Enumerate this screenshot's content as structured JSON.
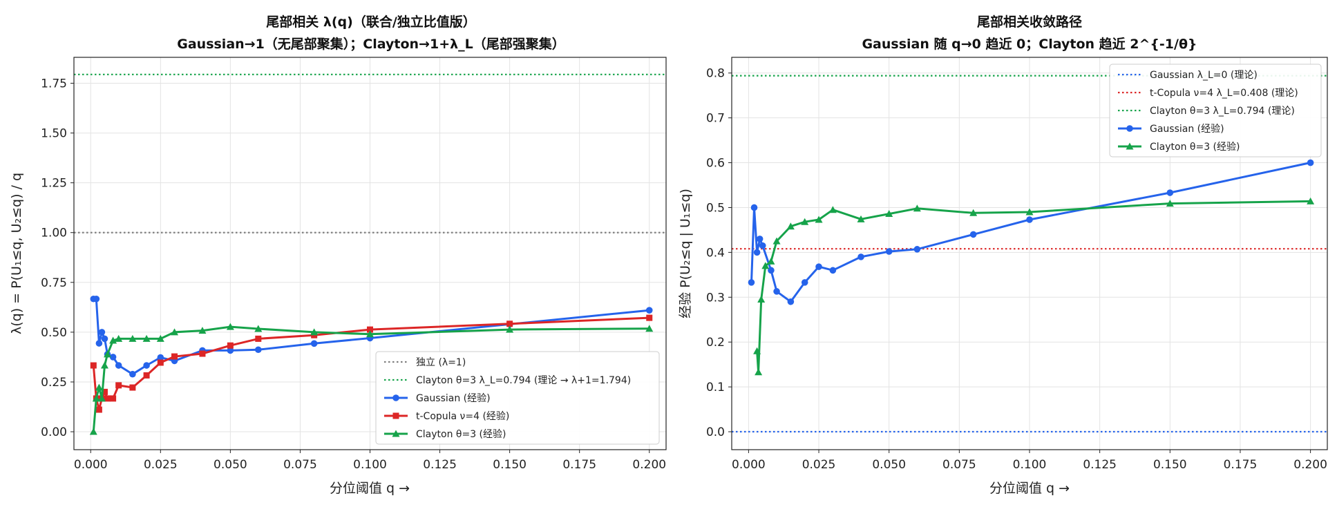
{
  "chart_data": [
    {
      "type": "line",
      "title": "尾部相关 λ(q)（联合/独立比值版）",
      "subtitle": "Gaussian→1（无尾部聚集）；Clayton→1+λ_L（尾部强聚集）",
      "xlabel": "分位阈值 q  →",
      "ylabel": "λ(q) = P(U₁≤q, U₂≤q) / q",
      "xlim": [
        -0.006,
        0.206
      ],
      "ylim": [
        -0.09,
        1.88
      ],
      "xticks": [
        0.0,
        0.025,
        0.05,
        0.075,
        0.1,
        0.125,
        0.15,
        0.175,
        0.2
      ],
      "xtick_labels": [
        "0.000",
        "0.025",
        "0.050",
        "0.075",
        "0.100",
        "0.125",
        "0.150",
        "0.175",
        "0.200"
      ],
      "yticks": [
        0.0,
        0.25,
        0.5,
        0.75,
        1.0,
        1.25,
        1.5,
        1.75
      ],
      "ytick_labels": [
        "0.00",
        "0.25",
        "0.50",
        "0.75",
        "1.00",
        "1.25",
        "1.50",
        "1.75"
      ],
      "grid": true,
      "legend_position": "lower-right",
      "reference_lines": [
        {
          "name": "独立 (λ=1)",
          "y": 1.0,
          "color": "#7f7f7f"
        },
        {
          "name": "Clayton θ=3 λ_L=0.794 (理论 → λ+1=1.794)",
          "y": 1.794,
          "color": "#16a34a"
        }
      ],
      "series": [
        {
          "name": "Gaussian (经验)",
          "color": "#2563eb",
          "marker": "circle",
          "x": [
            0.001,
            0.002,
            0.003,
            0.004,
            0.005,
            0.006,
            0.008,
            0.01,
            0.015,
            0.02,
            0.025,
            0.03,
            0.04,
            0.05,
            0.06,
            0.08,
            0.1,
            0.15,
            0.2
          ],
          "y": [
            0.667,
            0.667,
            0.444,
            0.5,
            0.467,
            0.389,
            0.375,
            0.333,
            0.289,
            0.333,
            0.373,
            0.356,
            0.408,
            0.408,
            0.412,
            0.443,
            0.47,
            0.54,
            0.61
          ]
        },
        {
          "name": "t-Copula ν=4 (经验)",
          "color": "#dc2626",
          "marker": "square",
          "x": [
            0.001,
            0.002,
            0.003,
            0.004,
            0.005,
            0.006,
            0.008,
            0.01,
            0.015,
            0.02,
            0.025,
            0.03,
            0.04,
            0.05,
            0.06,
            0.08,
            0.1,
            0.15,
            0.2
          ],
          "y": [
            0.333,
            0.167,
            0.111,
            0.167,
            0.2,
            0.167,
            0.167,
            0.233,
            0.222,
            0.283,
            0.347,
            0.378,
            0.392,
            0.433,
            0.467,
            0.485,
            0.513,
            0.542,
            0.572
          ]
        },
        {
          "name": "Clayton θ=3 (经验)",
          "color": "#16a34a",
          "marker": "triangle",
          "x": [
            0.001,
            0.002,
            0.003,
            0.004,
            0.005,
            0.006,
            0.008,
            0.01,
            0.015,
            0.02,
            0.025,
            0.03,
            0.04,
            0.05,
            0.06,
            0.08,
            0.1,
            0.15,
            0.2
          ],
          "y": [
            0.0,
            0.167,
            0.222,
            0.167,
            0.333,
            0.389,
            0.458,
            0.467,
            0.467,
            0.467,
            0.467,
            0.5,
            0.508,
            0.527,
            0.517,
            0.5,
            0.49,
            0.513,
            0.518
          ]
        }
      ]
    },
    {
      "type": "line",
      "title": "尾部相关收敛路径",
      "subtitle": "Gaussian 随 q→0 趋近 0；Clayton 趋近 2^{-1/θ}",
      "xlabel": "分位阈值 q  →",
      "ylabel": "经验 P(U₂≤q | U₁≤q)",
      "xlim": [
        -0.006,
        0.206
      ],
      "ylim": [
        -0.04,
        0.835
      ],
      "xticks": [
        0.0,
        0.025,
        0.05,
        0.075,
        0.1,
        0.125,
        0.15,
        0.175,
        0.2
      ],
      "xtick_labels": [
        "0.000",
        "0.025",
        "0.050",
        "0.075",
        "0.100",
        "0.125",
        "0.150",
        "0.175",
        "0.200"
      ],
      "yticks": [
        0.0,
        0.1,
        0.2,
        0.3,
        0.4,
        0.5,
        0.6,
        0.7,
        0.8
      ],
      "ytick_labels": [
        "0.0",
        "0.1",
        "0.2",
        "0.3",
        "0.4",
        "0.5",
        "0.6",
        "0.7",
        "0.8"
      ],
      "grid": true,
      "legend_position": "upper-right",
      "reference_lines": [
        {
          "name": "Gaussian λ_L=0 (理论)",
          "y": 0.0,
          "color": "#2563eb"
        },
        {
          "name": "t-Copula ν=4 λ_L=0.408 (理论)",
          "y": 0.408,
          "color": "#dc2626"
        },
        {
          "name": "Clayton θ=3 λ_L=0.794 (理论)",
          "y": 0.794,
          "color": "#16a34a"
        }
      ],
      "series": [
        {
          "name": "Gaussian (经验)",
          "color": "#2563eb",
          "marker": "circle",
          "x": [
            0.001,
            0.002,
            0.003,
            0.004,
            0.005,
            0.008,
            0.01,
            0.015,
            0.02,
            0.025,
            0.03,
            0.04,
            0.05,
            0.06,
            0.08,
            0.1,
            0.15,
            0.2
          ],
          "y": [
            0.333,
            0.5,
            0.4,
            0.43,
            0.415,
            0.36,
            0.313,
            0.29,
            0.333,
            0.368,
            0.36,
            0.39,
            0.402,
            0.407,
            0.44,
            0.473,
            0.533,
            0.6
          ]
        },
        {
          "name": "Clayton θ=3 (经验)",
          "color": "#16a34a",
          "marker": "triangle",
          "x": [
            0.003,
            0.0035,
            0.0045,
            0.006,
            0.008,
            0.01,
            0.015,
            0.02,
            0.025,
            0.03,
            0.04,
            0.05,
            0.06,
            0.08,
            0.1,
            0.15,
            0.2
          ],
          "y": [
            0.18,
            0.133,
            0.295,
            0.37,
            0.38,
            0.425,
            0.458,
            0.468,
            0.473,
            0.495,
            0.474,
            0.486,
            0.498,
            0.488,
            0.49,
            0.509,
            0.514
          ]
        }
      ]
    }
  ]
}
